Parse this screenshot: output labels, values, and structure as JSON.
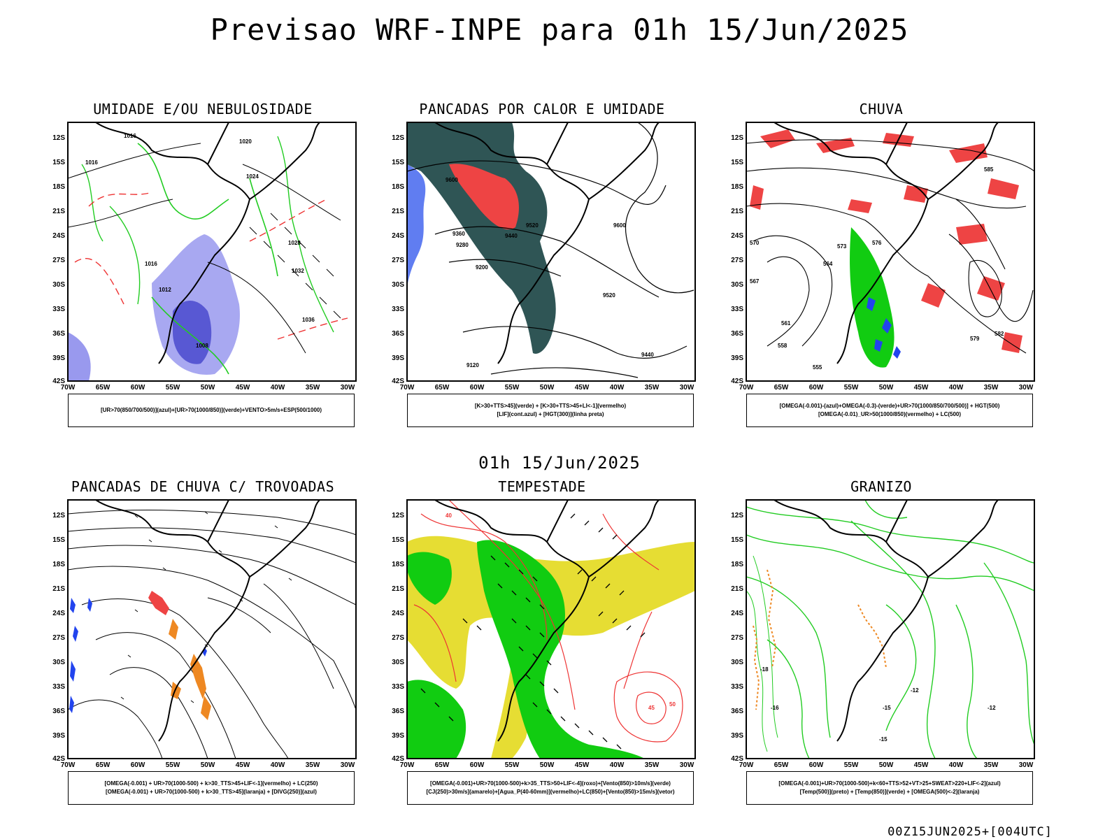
{
  "main_title": "Previsao WRF-INPE  para 01h 15/Jun/2025",
  "mid_time": "01h 15/Jun/2025",
  "footer_stamp": "00Z15JUN2025+[004UTC]",
  "axis": {
    "lat_labels": [
      "12S",
      "15S",
      "18S",
      "21S",
      "24S",
      "27S",
      "30S",
      "33S",
      "36S",
      "39S",
      "42S"
    ],
    "lon_labels": [
      "70W",
      "65W",
      "60W",
      "55W",
      "50W",
      "45W",
      "40W",
      "35W",
      "30W"
    ]
  },
  "colors": {
    "outline": "#000000",
    "green_contour": "#22cc22",
    "red_dash": "#ee3333",
    "blue_fill": "#9999ee",
    "blue_dark": "#4444cc",
    "teal_fill": "#2f5555",
    "red_fill": "#ee4444",
    "green_fill": "#11cc11",
    "blue_speck": "#2244ee",
    "yellow_fill": "#e6dd33",
    "orange_fill": "#ee8822"
  },
  "panels": [
    {
      "title": "UMIDADE E/OU NEBULOSIDADE",
      "legend": [
        "[UR>70(850/700/500)](azul)+[UR>70(1000/850)](verde)+VENTO>5m/s+ESP(500/1000)"
      ],
      "contour_labels": [
        "1016",
        "1020",
        "1024",
        "1028",
        "1032",
        "1036",
        "1012",
        "1008",
        "1016",
        "1016"
      ]
    },
    {
      "title": "PANCADAS POR CALOR E UMIDADE",
      "legend": [
        "[K>30+TTS>45](verde) + [K>30+TTS>45+LI<-1](vermelho)",
        "[LIF](cont.azul) + [HGT(300)](linha preta)"
      ],
      "contour_labels": [
        "9600",
        "9600",
        "9520",
        "9440",
        "9360",
        "9280",
        "9200",
        "9120",
        "9440",
        "9520"
      ]
    },
    {
      "title": "CHUVA",
      "legend": [
        "[OMEGA(-0.001)-(azul)+OMEGA(-0.3)-(verde)+UR>70(1000/850/700/500)] + HGT(500)",
        "[OMEGA(-0.01)_UR>50(1000/850)(vermelho) + LC(500)"
      ],
      "contour_labels": [
        "585",
        "582",
        "579",
        "576",
        "573",
        "570",
        "567",
        "564",
        "561",
        "558",
        "555"
      ]
    },
    {
      "title": "PANCADAS DE CHUVA C/ TROVOADAS",
      "legend": [
        "[OMEGA(-0.001) + UR>70(1000-500) + k>30_TTS>45+LIF<-1](vermelho) + LC(250)",
        "[OMEGA(-0.001) + UR>70(1000-500) + k>30_TTS>45](laranja) + [DIVG(250)](azul)"
      ],
      "contour_labels": []
    },
    {
      "title": "TEMPESTADE",
      "legend": [
        "[OMEGA(-0.001)+UR>70(1000-500)+k>35_TTS>50+LIF<-4](roxo)+[Vento(850)>10m/s](verde)",
        "[CJ(250)>30m/s](amarelo)+[Agua_P(40-60mm)](vermelho)+LC(850)+[Vento(850)>15m/s](vetor)"
      ],
      "contour_labels": [
        "40",
        "45",
        "50"
      ]
    },
    {
      "title": "GRANIZO",
      "legend": [
        "[OMEGA(-0.001)+UR>70(1000-500)+k<60+TTS>52+VT>25+SWEAT>220+LIF<-2](azul)",
        "[Temp(500)](preto) + [Temp(850)](verde) + [OMEGA(500)<-2](laranja)"
      ],
      "contour_labels": [
        "-12",
        "-15",
        "-16",
        "-18",
        "-12",
        "-15"
      ]
    }
  ]
}
